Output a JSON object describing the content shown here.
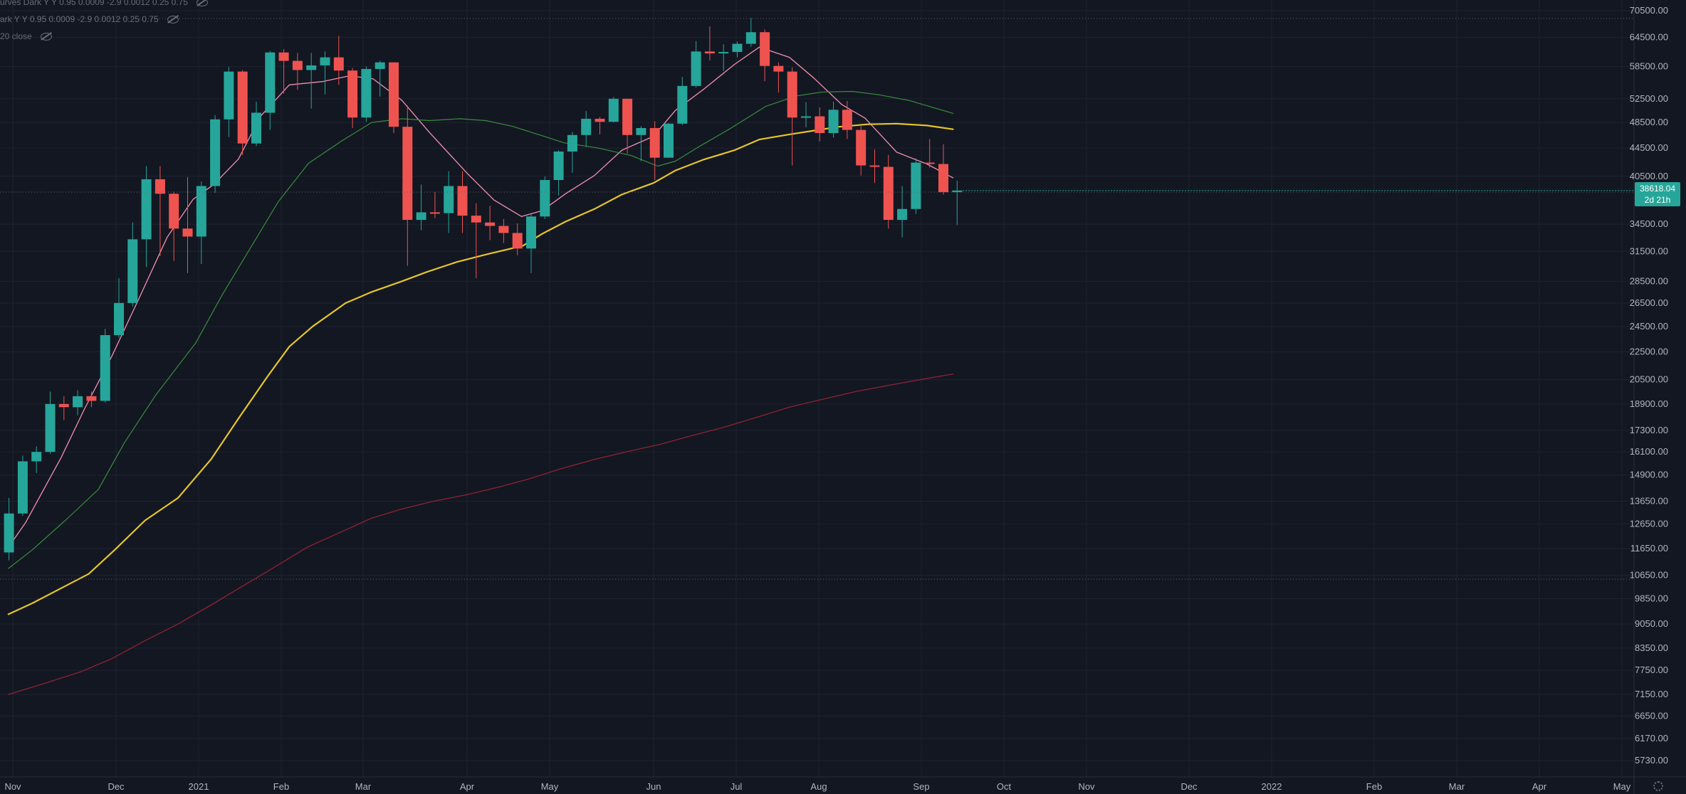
{
  "legend": {
    "rows": [
      {
        "text": "urves Dark Y Y 0.95 0.0009 -2.9 0.0012 0.25 0.75"
      },
      {
        "text": "ark Y Y 0.95 0.0009 -2.9 0.0012 0.25 0.75"
      },
      {
        "text": "20 close"
      }
    ]
  },
  "colors": {
    "background": "#131722",
    "up": "#26a69a",
    "down": "#ef5350",
    "ma_pink": "#f48fb1",
    "ma_green": "#388e3c",
    "ma_yellow": "#e6c529",
    "ma_red": "#8e2431",
    "grid": "#1f2330",
    "axis_text": "#b2b5be"
  },
  "current_price": {
    "value": "38618.04",
    "countdown": "2d 21h"
  },
  "chart_data": {
    "type": "candlestick",
    "title": "",
    "y_scale": "log",
    "ylim": [
      5400,
      72000
    ],
    "y_ticks": [
      "70500.00",
      "64500.00",
      "58500.00",
      "52500.00",
      "48500.00",
      "44500.00",
      "40500.00",
      "34500.00",
      "31500.00",
      "28500.00",
      "26500.00",
      "24500.00",
      "22500.00",
      "20500.00",
      "18900.00",
      "17300.00",
      "16100.00",
      "14900.00",
      "13650.00",
      "12650.00",
      "11650.00",
      "10650.00",
      "9850.00",
      "9050.00",
      "8350.00",
      "7750.00",
      "7150.00",
      "6650.00",
      "6170.00",
      "5730.00"
    ],
    "x_labels": [
      "Nov",
      "Dec",
      "2021",
      "Feb",
      "Mar",
      "Apr",
      "May",
      "Jun",
      "Jul",
      "Aug",
      "Sep",
      "Oct",
      "Nov",
      "Dec",
      "2022",
      "Feb",
      "Mar",
      "Apr",
      "May"
    ],
    "candles": [
      [
        11500,
        13800,
        11200,
        13100
      ],
      [
        13100,
        15900,
        13000,
        15600
      ],
      [
        15600,
        16400,
        15000,
        16100
      ],
      [
        16100,
        19700,
        16000,
        18900
      ],
      [
        18900,
        19400,
        17900,
        18700
      ],
      [
        18700,
        19800,
        18200,
        19400
      ],
      [
        19400,
        19700,
        18700,
        19100
      ],
      [
        19100,
        24300,
        19000,
        23800
      ],
      [
        23800,
        28800,
        23600,
        26500
      ],
      [
        26500,
        34700,
        26200,
        32800
      ],
      [
        32800,
        41900,
        29900,
        40100
      ],
      [
        40100,
        41900,
        31000,
        38200
      ],
      [
        38200,
        38500,
        30500,
        34000
      ],
      [
        34000,
        40400,
        29300,
        33100
      ],
      [
        33100,
        39800,
        30200,
        39200
      ],
      [
        39200,
        49700,
        38300,
        49000
      ],
      [
        49000,
        58400,
        46200,
        57500
      ],
      [
        57500,
        57800,
        43500,
        45200
      ],
      [
        45200,
        52000,
        44800,
        50100
      ],
      [
        50100,
        61600,
        47300,
        61300
      ],
      [
        61300,
        62000,
        53400,
        59600
      ],
      [
        59600,
        61200,
        54100,
        57800
      ],
      [
        57800,
        61200,
        50800,
        58700
      ],
      [
        58700,
        61500,
        53300,
        60300
      ],
      [
        60300,
        64800,
        55000,
        57700
      ],
      [
        57700,
        58200,
        47600,
        49300
      ],
      [
        49300,
        58500,
        48600,
        58000
      ],
      [
        58000,
        59600,
        52900,
        59300
      ],
      [
        59300,
        59200,
        46800,
        47800
      ],
      [
        47800,
        51300,
        30000,
        35000
      ],
      [
        35000,
        39400,
        33800,
        35900
      ],
      [
        35900,
        38400,
        35200,
        35800
      ],
      [
        35800,
        41200,
        33500,
        39200
      ],
      [
        39200,
        41200,
        33500,
        35500
      ],
      [
        35500,
        37000,
        28800,
        34700
      ],
      [
        34700,
        36700,
        32700,
        34300
      ],
      [
        34300,
        35100,
        32400,
        33500
      ],
      [
        33500,
        34600,
        31100,
        31800
      ],
      [
        31800,
        35800,
        29300,
        35400
      ],
      [
        35400,
        40500,
        35100,
        40000
      ],
      [
        40000,
        44200,
        38000,
        44000
      ],
      [
        44000,
        47000,
        41000,
        46500
      ],
      [
        46500,
        50400,
        44700,
        49100
      ],
      [
        49100,
        49400,
        46600,
        48600
      ],
      [
        48600,
        52800,
        48500,
        52500
      ],
      [
        52500,
        52500,
        43700,
        46500
      ],
      [
        46500,
        47900,
        42600,
        47600
      ],
      [
        47600,
        48700,
        40000,
        43100
      ],
      [
        43100,
        48400,
        43100,
        48300
      ],
      [
        48300,
        56500,
        48100,
        54800
      ],
      [
        54800,
        63700,
        54500,
        61500
      ],
      [
        61500,
        66900,
        59700,
        61100
      ],
      [
        61100,
        63000,
        57600,
        61400
      ],
      [
        61400,
        63600,
        60300,
        63100
      ],
      [
        63100,
        68800,
        62500,
        65600
      ],
      [
        65600,
        66200,
        55700,
        58600
      ],
      [
        58600,
        59300,
        53600,
        57500
      ],
      [
        57500,
        58300,
        42000,
        49300
      ],
      [
        49300,
        51900,
        47700,
        49500
      ],
      [
        49500,
        51000,
        45500,
        46800
      ],
      [
        46800,
        52000,
        46100,
        50600
      ],
      [
        50600,
        52100,
        45900,
        47300
      ],
      [
        47300,
        47900,
        40600,
        42000
      ],
      [
        42000,
        44300,
        39600,
        41800
      ],
      [
        41800,
        43500,
        34000,
        35000
      ],
      [
        35000,
        39200,
        33000,
        36300
      ],
      [
        36300,
        43000,
        35700,
        42400
      ],
      [
        42400,
        45900,
        41700,
        42200
      ],
      [
        42200,
        45100,
        38100,
        38400
      ],
      [
        38400,
        39900,
        34400,
        38618
      ]
    ],
    "series": [
      {
        "color_key": "ma_pink",
        "points": [
          [
            -0.04,
            11700
          ],
          [
            1.2,
            12700
          ],
          [
            3.8,
            15800
          ],
          [
            5.5,
            18600
          ],
          [
            7.5,
            22200
          ],
          [
            9.5,
            27000
          ],
          [
            11.5,
            33000
          ],
          [
            13.4,
            37500
          ],
          [
            14.9,
            39400
          ],
          [
            16.7,
            42900
          ],
          [
            18.3,
            49500
          ],
          [
            20.4,
            55000
          ],
          [
            22.8,
            55600
          ],
          [
            24.8,
            56700
          ],
          [
            26.5,
            56100
          ],
          [
            28.6,
            52200
          ],
          [
            30.6,
            46900
          ],
          [
            33.4,
            40800
          ],
          [
            35.3,
            37400
          ],
          [
            37.3,
            35400
          ],
          [
            38.8,
            36100
          ],
          [
            40.5,
            38200
          ],
          [
            42.6,
            40600
          ],
          [
            44.6,
            44200
          ],
          [
            46.9,
            46300
          ],
          [
            48.5,
            50500
          ],
          [
            50.5,
            54100
          ],
          [
            52.8,
            58900
          ],
          [
            54.6,
            62400
          ],
          [
            56.8,
            60300
          ],
          [
            58.6,
            56200
          ],
          [
            60.6,
            51500
          ],
          [
            62.3,
            49200
          ],
          [
            64.6,
            43900
          ],
          [
            66.8,
            42200
          ],
          [
            68.7,
            40300
          ]
        ]
      },
      {
        "color_key": "ma_green",
        "points": [
          [
            -0.04,
            10900
          ],
          [
            1.7,
            11600
          ],
          [
            4.1,
            12800
          ],
          [
            6.5,
            14200
          ],
          [
            8.4,
            16600
          ],
          [
            10.7,
            19500
          ],
          [
            13.6,
            23200
          ],
          [
            15.5,
            27200
          ],
          [
            17.5,
            31700
          ],
          [
            19.6,
            37200
          ],
          [
            21.8,
            42300
          ],
          [
            24.3,
            45700
          ],
          [
            26.4,
            48500
          ],
          [
            28.6,
            49100
          ],
          [
            30.6,
            48800
          ],
          [
            32.8,
            49100
          ],
          [
            34.7,
            48800
          ],
          [
            36.6,
            47900
          ],
          [
            38.5,
            46600
          ],
          [
            40.4,
            45300
          ],
          [
            42.9,
            44500
          ],
          [
            45.3,
            43400
          ],
          [
            47.2,
            41900
          ],
          [
            48.5,
            42600
          ],
          [
            50.2,
            44700
          ],
          [
            52.4,
            47400
          ],
          [
            55.1,
            51200
          ],
          [
            57.3,
            53000
          ],
          [
            59.2,
            53700
          ],
          [
            61.4,
            53800
          ],
          [
            63.3,
            53200
          ],
          [
            65.5,
            52200
          ],
          [
            68.7,
            50000
          ]
        ]
      },
      {
        "color_key": "ma_yellow",
        "points": [
          [
            -0.04,
            9350
          ],
          [
            1.7,
            9700
          ],
          [
            4.2,
            10300
          ],
          [
            5.8,
            10700
          ],
          [
            7.7,
            11600
          ],
          [
            9.9,
            12800
          ],
          [
            12.3,
            13800
          ],
          [
            14.7,
            15700
          ],
          [
            16.7,
            18000
          ],
          [
            18.8,
            20700
          ],
          [
            20.4,
            22900
          ],
          [
            22.1,
            24500
          ],
          [
            24.5,
            26500
          ],
          [
            26.4,
            27500
          ],
          [
            28.6,
            28500
          ],
          [
            30.4,
            29400
          ],
          [
            32.6,
            30400
          ],
          [
            34.8,
            31200
          ],
          [
            37.4,
            32100
          ],
          [
            38.8,
            33400
          ],
          [
            40.5,
            34800
          ],
          [
            42.6,
            36300
          ],
          [
            44.6,
            38100
          ],
          [
            46.9,
            39600
          ],
          [
            48.5,
            41300
          ],
          [
            50.5,
            42800
          ],
          [
            52.8,
            44200
          ],
          [
            54.6,
            45800
          ],
          [
            56.8,
            46600
          ],
          [
            58.6,
            47200
          ],
          [
            60.4,
            47800
          ],
          [
            62.5,
            48200
          ],
          [
            64.6,
            48300
          ],
          [
            66.8,
            48000
          ],
          [
            68.7,
            47400
          ]
        ]
      },
      {
        "color_key": "ma_red",
        "points": [
          [
            -0.04,
            7150
          ],
          [
            2.6,
            7420
          ],
          [
            5.2,
            7710
          ],
          [
            7.5,
            8060
          ],
          [
            9.9,
            8560
          ],
          [
            12.3,
            9050
          ],
          [
            14.7,
            9640
          ],
          [
            17.1,
            10300
          ],
          [
            19.5,
            11000
          ],
          [
            21.7,
            11700
          ],
          [
            24.5,
            12400
          ],
          [
            26.4,
            12900
          ],
          [
            28.6,
            13300
          ],
          [
            30.9,
            13650
          ],
          [
            33.3,
            13950
          ],
          [
            35.6,
            14300
          ],
          [
            37.8,
            14700
          ],
          [
            40.1,
            15200
          ],
          [
            42.6,
            15700
          ],
          [
            44.9,
            16100
          ],
          [
            47.3,
            16500
          ],
          [
            49.7,
            17000
          ],
          [
            52.1,
            17500
          ],
          [
            54.5,
            18100
          ],
          [
            56.8,
            18700
          ],
          [
            59.2,
            19200
          ],
          [
            61.6,
            19700
          ],
          [
            63.9,
            20100
          ],
          [
            66.3,
            20500
          ],
          [
            68.7,
            20900
          ]
        ]
      }
    ]
  }
}
